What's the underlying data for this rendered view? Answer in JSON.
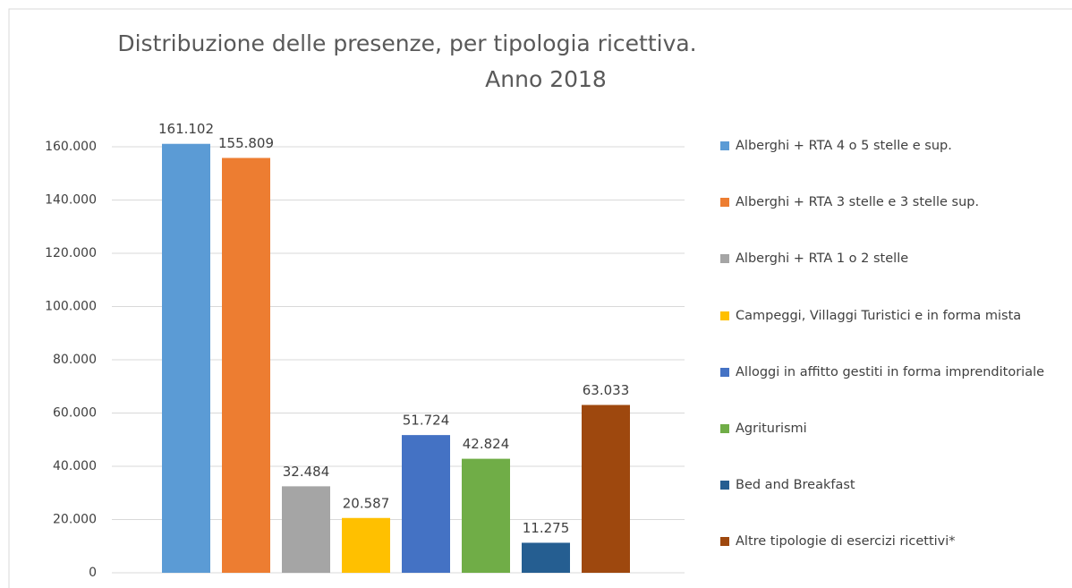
{
  "chart_data": {
    "type": "bar",
    "title": [
      "Distribuzione delle presenze, per tipologia ricettiva.",
      "Anno 2018"
    ],
    "series": [
      {
        "name": "Alberghi + RTA 4 o 5 stelle e sup.",
        "color": "#5b9bd5",
        "values": [
          161102
        ],
        "value_labels": [
          "161.102"
        ]
      },
      {
        "name": "Alberghi + RTA 3 stelle e 3 stelle sup.",
        "color": "#ed7d31",
        "values": [
          155809
        ],
        "value_labels": [
          "155.809"
        ]
      },
      {
        "name": "Alberghi + RTA 1 o 2 stelle",
        "color": "#a5a5a5",
        "values": [
          32484
        ],
        "value_labels": [
          "32.484"
        ]
      },
      {
        "name": "Campeggi, Villaggi Turistici e in forma mista",
        "color": "#ffc000",
        "values": [
          20587
        ],
        "value_labels": [
          "20.587"
        ]
      },
      {
        "name": "Alloggi in affitto gestiti in forma imprenditoriale",
        "color": "#4472c4",
        "values": [
          51724
        ],
        "value_labels": [
          "51.724"
        ]
      },
      {
        "name": "Agriturismi",
        "color": "#70ad47",
        "values": [
          42824
        ],
        "value_labels": [
          "42.824"
        ]
      },
      {
        "name": "Bed and Breakfast",
        "color": "#255e91",
        "values": [
          11275
        ],
        "value_labels": [
          "11.275"
        ]
      },
      {
        "name": "Altre tipologie di esercizi ricettivi*",
        "color": "#9e480e",
        "values": [
          63033
        ],
        "value_labels": [
          "63.033"
        ]
      }
    ],
    "ylim": [
      0,
      180000
    ],
    "yticks": [
      0,
      {
        "value": 20000,
        "label": "20.000"
      },
      {
        "value": 40000,
        "label": "40.000"
      },
      {
        "value": 60000,
        "label": "60.000"
      },
      {
        "value": 80000,
        "label": "80.000"
      },
      {
        "value": 100000,
        "label": "100.000"
      },
      {
        "value": 120000,
        "label": "120.000"
      },
      {
        "value": 140000,
        "label": "140.000"
      },
      {
        "value": 160000,
        "label": "160.000"
      }
    ],
    "grid": true,
    "legend": "right"
  }
}
